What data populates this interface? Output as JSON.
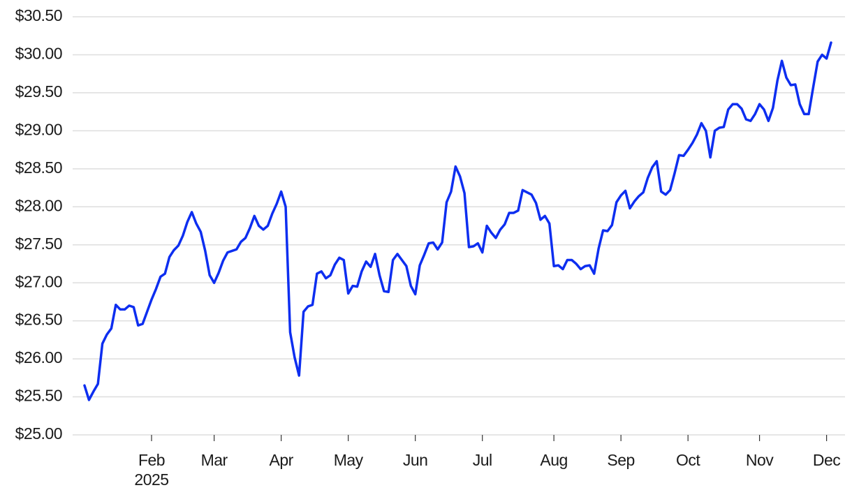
{
  "chart_data": {
    "type": "line",
    "categories": [
      null,
      null,
      null,
      null,
      null,
      null,
      null,
      null,
      null,
      null,
      null,
      null,
      null,
      null,
      null,
      "Feb",
      null,
      null,
      null,
      null,
      null,
      null,
      null,
      null,
      null,
      null,
      null,
      null,
      null,
      "Mar",
      null,
      null,
      null,
      null,
      null,
      null,
      null,
      null,
      null,
      null,
      null,
      null,
      null,
      null,
      "Apr",
      null,
      null,
      null,
      null,
      null,
      null,
      null,
      null,
      null,
      null,
      null,
      null,
      null,
      null,
      "May",
      null,
      null,
      null,
      null,
      null,
      null,
      null,
      null,
      null,
      null,
      null,
      null,
      null,
      null,
      "Jun",
      null,
      null,
      null,
      null,
      null,
      null,
      null,
      null,
      null,
      null,
      null,
      null,
      null,
      null,
      "Jul",
      null,
      null,
      null,
      null,
      null,
      null,
      null,
      null,
      null,
      null,
      null,
      null,
      null,
      null,
      null,
      "Aug",
      null,
      null,
      null,
      null,
      null,
      null,
      null,
      null,
      null,
      null,
      null,
      null,
      null,
      null,
      "Sep",
      null,
      null,
      null,
      null,
      null,
      null,
      null,
      null,
      null,
      null,
      null,
      null,
      null,
      null,
      "Oct",
      null,
      null,
      null,
      null,
      null,
      null,
      null,
      null,
      null,
      null,
      null,
      null,
      null,
      null,
      null,
      "Nov",
      null,
      null,
      null,
      null,
      null,
      null,
      null,
      null,
      null,
      null,
      null,
      null,
      null,
      null,
      "Dec",
      null
    ],
    "year_label": "2025",
    "values": [
      25.65,
      25.46,
      25.57,
      25.67,
      26.2,
      26.32,
      26.4,
      26.71,
      26.65,
      26.65,
      26.7,
      26.68,
      26.44,
      26.46,
      26.62,
      26.78,
      26.92,
      27.08,
      27.12,
      27.34,
      27.43,
      27.49,
      27.62,
      27.8,
      27.93,
      27.78,
      27.67,
      27.42,
      27.1,
      27.0,
      27.13,
      27.29,
      27.4,
      27.42,
      27.44,
      27.54,
      27.59,
      27.72,
      27.88,
      27.75,
      27.7,
      27.75,
      27.91,
      28.04,
      28.2,
      28.0,
      26.35,
      26.02,
      25.78,
      26.62,
      26.69,
      26.71,
      27.12,
      27.15,
      27.06,
      27.1,
      27.24,
      27.33,
      27.3,
      26.86,
      26.96,
      26.95,
      27.15,
      27.28,
      27.21,
      27.38,
      27.1,
      26.89,
      26.88,
      27.3,
      27.38,
      27.3,
      27.22,
      26.96,
      26.85,
      27.23,
      27.37,
      27.52,
      27.53,
      27.44,
      27.53,
      28.06,
      28.2,
      28.53,
      28.4,
      28.18,
      27.47,
      27.48,
      27.52,
      27.4,
      27.75,
      27.66,
      27.59,
      27.7,
      27.77,
      27.92,
      27.92,
      27.95,
      28.22,
      28.19,
      28.16,
      28.05,
      27.83,
      27.88,
      27.78,
      27.22,
      27.23,
      27.18,
      27.3,
      27.3,
      27.25,
      27.18,
      27.22,
      27.23,
      27.12,
      27.45,
      27.69,
      27.68,
      27.76,
      28.06,
      28.15,
      28.21,
      27.98,
      28.07,
      28.14,
      28.19,
      28.38,
      28.52,
      28.6,
      28.2,
      28.16,
      28.22,
      28.44,
      28.68,
      28.67,
      28.75,
      28.84,
      28.95,
      29.1,
      29.0,
      28.65,
      29.0,
      29.04,
      29.05,
      29.28,
      29.35,
      29.35,
      29.29,
      29.15,
      29.13,
      29.22,
      29.35,
      29.28,
      29.13,
      29.3,
      29.66,
      29.92,
      29.7,
      29.6,
      29.61,
      29.35,
      29.22,
      29.22,
      29.57,
      29.91,
      30.0,
      29.95,
      30.16
    ],
    "color": "#0d2ef0",
    "ylim": [
      25,
      30.5
    ],
    "yticks": [
      {
        "value": 25,
        "label": "$25.00"
      },
      {
        "value": 25.5,
        "label": "$25.50"
      },
      {
        "value": 26,
        "label": "$26.00"
      },
      {
        "value": 26.5,
        "label": "$26.50"
      },
      {
        "value": 27,
        "label": "$27.00"
      },
      {
        "value": 27.5,
        "label": "$27.50"
      },
      {
        "value": 28,
        "label": "$28.00"
      },
      {
        "value": 28.5,
        "label": "$28.50"
      },
      {
        "value": 29,
        "label": "$29.00"
      },
      {
        "value": 29.5,
        "label": "$29.50"
      },
      {
        "value": 30,
        "label": "$30.00"
      },
      {
        "value": 30.5,
        "label": "$30.50"
      }
    ],
    "grid": true
  }
}
